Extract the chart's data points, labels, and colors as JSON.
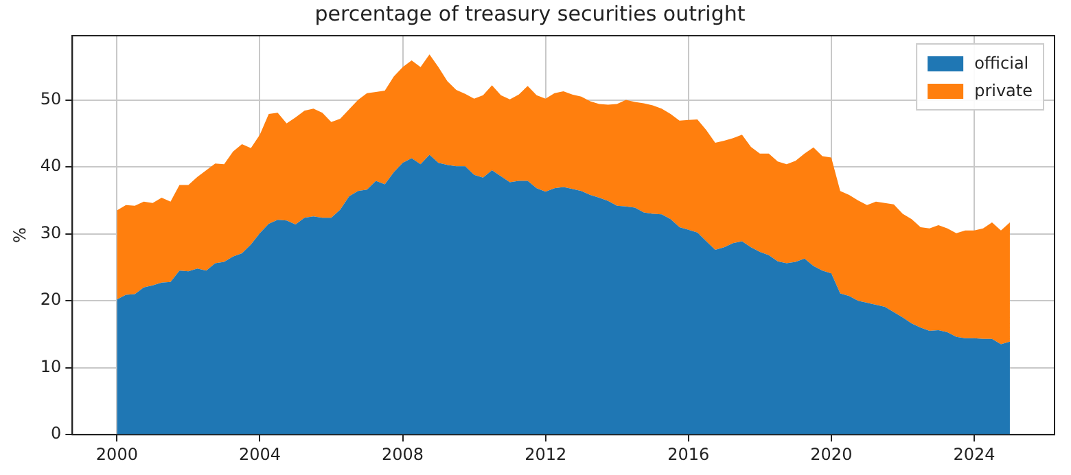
{
  "chart_data": {
    "type": "area",
    "stacked": true,
    "title": "percentage of treasury securities outright",
    "ylabel": "%",
    "x": [
      2000,
      2000.25,
      2000.5,
      2000.75,
      2001,
      2001.25,
      2001.5,
      2001.75,
      2002,
      2002.25,
      2002.5,
      2002.75,
      2003,
      2003.25,
      2003.5,
      2003.75,
      2004,
      2004.25,
      2004.5,
      2004.75,
      2005,
      2005.25,
      2005.5,
      2005.75,
      2006,
      2006.25,
      2006.5,
      2006.75,
      2007,
      2007.25,
      2007.5,
      2007.75,
      2008,
      2008.25,
      2008.5,
      2008.75,
      2009,
      2009.25,
      2009.5,
      2009.75,
      2010,
      2010.25,
      2010.5,
      2010.75,
      2011,
      2011.25,
      2011.5,
      2011.75,
      2012,
      2012.25,
      2012.5,
      2012.75,
      2013,
      2013.25,
      2013.5,
      2013.75,
      2014,
      2014.25,
      2014.5,
      2014.75,
      2015,
      2015.25,
      2015.5,
      2015.75,
      2016,
      2016.25,
      2016.5,
      2016.75,
      2017,
      2017.25,
      2017.5,
      2017.75,
      2018,
      2018.25,
      2018.5,
      2018.75,
      2019,
      2019.25,
      2019.5,
      2019.75,
      2020,
      2020.25,
      2020.5,
      2020.75,
      2021,
      2021.25,
      2021.5,
      2021.75,
      2022,
      2022.25,
      2022.5,
      2022.75,
      2023,
      2023.25,
      2023.5,
      2023.75,
      2024,
      2024.25,
      2024.5,
      2024.75,
      2025
    ],
    "series": [
      {
        "name": "official",
        "color": "#1f77b4",
        "values": [
          20.2,
          20.9,
          21.0,
          22.0,
          22.3,
          22.7,
          22.8,
          24.5,
          24.4,
          24.8,
          24.5,
          25.6,
          25.8,
          26.6,
          27.1,
          28.4,
          30.1,
          31.5,
          32.1,
          32.0,
          31.4,
          32.4,
          32.6,
          32.4,
          32.4,
          33.6,
          35.6,
          36.4,
          36.6,
          37.9,
          37.4,
          39.2,
          40.6,
          41.3,
          40.4,
          41.8,
          40.6,
          40.3,
          40.1,
          40.1,
          38.8,
          38.4,
          39.5,
          38.6,
          37.7,
          37.9,
          37.9,
          36.8,
          36.3,
          36.8,
          37.0,
          36.7,
          36.4,
          35.8,
          35.4,
          34.9,
          34.2,
          34.1,
          33.9,
          33.2,
          33.0,
          32.9,
          32.2,
          31.0,
          30.6,
          30.2,
          28.9,
          27.6,
          28.0,
          28.6,
          28.9,
          28.0,
          27.3,
          26.8,
          25.9,
          25.6,
          25.8,
          26.3,
          25.2,
          24.5,
          24.1,
          21.1,
          20.7,
          20.0,
          19.7,
          19.4,
          19.1,
          18.3,
          17.5,
          16.6,
          16.0,
          15.5,
          15.6,
          15.3,
          14.6,
          14.4,
          14.4,
          14.3,
          14.3,
          13.5,
          13.9
        ]
      },
      {
        "name": "private",
        "color": "#ff7f0e",
        "values": [
          13.3,
          13.4,
          13.2,
          12.8,
          12.3,
          12.7,
          12.0,
          12.8,
          12.9,
          13.7,
          15.0,
          14.9,
          14.6,
          15.7,
          16.3,
          14.4,
          14.7,
          16.4,
          16.0,
          14.5,
          16.0,
          16.0,
          16.1,
          15.7,
          14.3,
          13.6,
          13.0,
          13.6,
          14.4,
          13.3,
          14.0,
          14.3,
          14.3,
          14.6,
          14.5,
          15.0,
          14.3,
          12.5,
          11.4,
          10.8,
          11.4,
          12.3,
          12.7,
          12.1,
          12.4,
          12.9,
          14.2,
          13.9,
          13.9,
          14.2,
          14.3,
          14.1,
          14.1,
          14.0,
          14.0,
          14.4,
          15.2,
          15.9,
          15.8,
          16.3,
          16.2,
          15.8,
          15.7,
          15.9,
          16.4,
          16.9,
          16.6,
          16.0,
          15.9,
          15.7,
          15.9,
          15.0,
          14.7,
          15.2,
          14.9,
          14.8,
          15.1,
          15.7,
          17.7,
          17.1,
          17.3,
          15.3,
          15.1,
          15.0,
          14.6,
          15.4,
          15.5,
          16.1,
          15.5,
          15.6,
          15.0,
          15.3,
          15.7,
          15.5,
          15.5,
          16.1,
          16.1,
          16.5,
          17.4,
          17.0,
          17.8
        ]
      }
    ],
    "xlim": [
      1998.75,
      2026.25
    ],
    "xticks": [
      2000,
      2004,
      2008,
      2012,
      2016,
      2020,
      2024
    ],
    "ylim": [
      0,
      59.6
    ],
    "yticks": [
      0,
      10,
      20,
      30,
      40,
      50
    ],
    "grid": true,
    "legend": "top right"
  }
}
